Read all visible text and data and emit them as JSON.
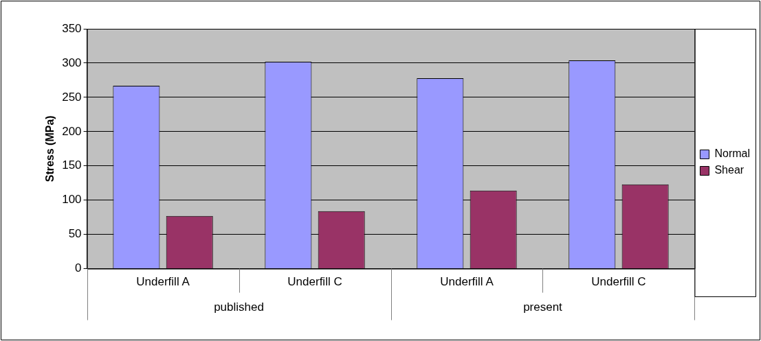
{
  "chart_data": {
    "type": "bar",
    "ylabel": "Stress (MPa)",
    "categories": [
      "Underfill A",
      "Underfill C",
      "Underfill A",
      "Underfill C"
    ],
    "series": [
      {
        "name": "Normal",
        "color": "#9999ff",
        "values": [
          267,
          302,
          278,
          304
        ]
      },
      {
        "name": "Shear",
        "color": "#993366",
        "values": [
          77,
          84,
          114,
          123
        ]
      }
    ],
    "annotations": [
      "published",
      "present"
    ],
    "ylim": [
      0,
      350
    ],
    "yticks": [
      0,
      50,
      100,
      150,
      200,
      250,
      300,
      350
    ],
    "grid": "y",
    "legend": "right"
  }
}
